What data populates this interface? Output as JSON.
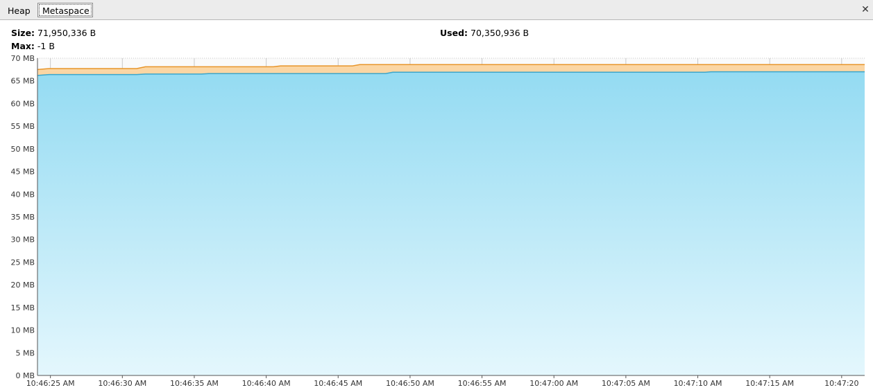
{
  "tabs": [
    {
      "label": "Heap",
      "selected": false
    },
    {
      "label": "Metaspace",
      "selected": true
    }
  ],
  "close_icon": "close-icon",
  "stats": {
    "size_label": "Size:",
    "size_value": "71,950,336 B",
    "max_label": "Max:",
    "max_value": "-1 B",
    "used_label": "Used:",
    "used_value": "70,350,936 B"
  },
  "colors": {
    "used_line": "#3aa6cc",
    "used_fill_top": "#94dbf2",
    "used_fill_bottom": "#e4f7fd",
    "size_line": "#e8952a",
    "size_fill": "#fbd6a4",
    "grid": "#c8c8c8"
  },
  "chart_data": {
    "type": "area",
    "y_unit": "MB",
    "ylim": [
      0,
      70
    ],
    "y_ticks": [
      "0 MB",
      "5 MB",
      "10 MB",
      "15 MB",
      "20 MB",
      "25 MB",
      "30 MB",
      "35 MB",
      "40 MB",
      "45 MB",
      "50 MB",
      "55 MB",
      "60 MB",
      "65 MB",
      "70 MB"
    ],
    "x_ticks": [
      "10:46:25 AM",
      "10:46:30 AM",
      "10:46:35 AM",
      "10:46:40 AM",
      "10:46:45 AM",
      "10:46:50 AM",
      "10:46:55 AM",
      "10:47:00 AM",
      "10:47:05 AM",
      "10:47:10 AM",
      "10:47:15 AM",
      "10:47:20"
    ],
    "x_seconds": [
      24.1,
      24.9,
      31.0,
      31.6,
      35.5,
      36.0,
      40.5,
      41.0,
      46.0,
      46.5,
      48.3,
      48.8,
      70.5,
      70.9,
      81.6
    ],
    "series": [
      {
        "name": "Size",
        "values": [
          67.5,
          67.7,
          67.7,
          68.1,
          68.1,
          68.1,
          68.1,
          68.3,
          68.3,
          68.6,
          68.6,
          68.6,
          68.6,
          68.6,
          68.6
        ]
      },
      {
        "name": "Used",
        "values": [
          66.2,
          66.4,
          66.4,
          66.5,
          66.5,
          66.6,
          66.6,
          66.6,
          66.6,
          66.6,
          66.6,
          66.9,
          66.9,
          67.0,
          67.0
        ]
      }
    ]
  }
}
